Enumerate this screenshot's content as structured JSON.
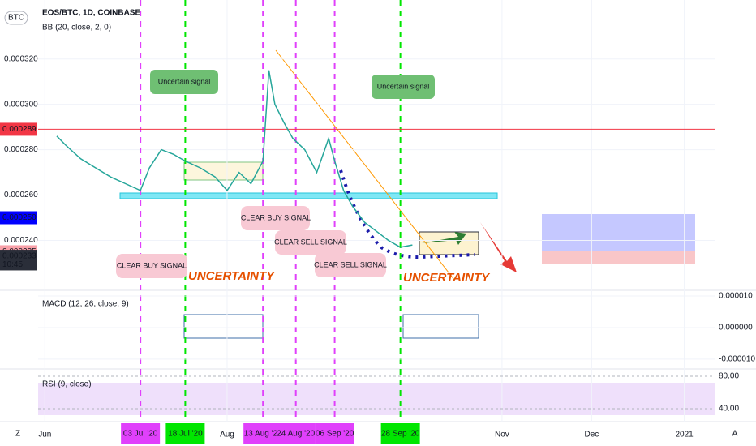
{
  "chart_data": {
    "type": "line",
    "symbol": "BTC",
    "title": "EOS/BTC, 1D, COINBASE",
    "subtitle": "BB (20, close, 2, 0)",
    "series": [
      {
        "name": "EOS/BTC",
        "color": "#26a69a",
        "x": [
          157,
          160,
          165,
          170,
          175,
          180,
          185,
          188,
          192,
          196,
          200,
          205,
          210,
          214,
          218,
          222,
          226,
          228,
          230,
          233,
          236,
          240,
          244,
          248,
          250,
          253,
          256,
          260,
          264,
          268,
          272,
          276
        ],
        "values": [
          0.000286,
          0.000282,
          0.000276,
          0.000272,
          0.000268,
          0.000265,
          0.000262,
          0.000272,
          0.00028,
          0.000278,
          0.000275,
          0.000272,
          0.000268,
          0.000262,
          0.00027,
          0.000265,
          0.000275,
          0.000315,
          0.0003,
          0.000292,
          0.000285,
          0.00028,
          0.00027,
          0.000285,
          0.000275,
          0.000262,
          0.000255,
          0.000248,
          0.000244,
          0.00024,
          0.000237,
          0.000238
        ]
      }
    ],
    "xlim": [
      138,
      391
    ],
    "ylim": [
      0.000218,
      0.000346
    ],
    "yticks": [
      {
        "value": 0.00032,
        "label": "0.000320"
      },
      {
        "value": 0.0003,
        "label": "0.000300"
      },
      {
        "value": 0.00028,
        "label": "0.000280"
      },
      {
        "value": 0.00026,
        "label": "0.000260"
      },
      {
        "value": 0.00024,
        "label": "0.000240"
      }
    ],
    "xticks": [
      {
        "value": 153,
        "label": "Jun"
      },
      {
        "value": 214,
        "label": "Aug"
      },
      {
        "value": 306,
        "label": "Nov"
      },
      {
        "value": 336,
        "label": "Dec"
      },
      {
        "value": 367,
        "label": "2021"
      }
    ],
    "marked_dates": [
      {
        "value": 185,
        "label": "03 Jul '20",
        "color": "#e040fb"
      },
      {
        "value": 200,
        "label": "18 Jul '20",
        "color": "#00e600"
      },
      {
        "value": 226,
        "label": "13 Aug '20",
        "color": "#e040fb"
      },
      {
        "value": 237,
        "label": "24 Aug '20",
        "color": "#e040fb"
      },
      {
        "value": 250,
        "label": "06 Sep '20",
        "color": "#e040fb"
      },
      {
        "value": 272,
        "label": "28 Sep '20",
        "color": "#00e600"
      }
    ],
    "price_markers": [
      {
        "value": 0.000289,
        "label": "0.000289",
        "color": "#f23645"
      },
      {
        "value": 0.00025,
        "label": "0.000250",
        "color": "#0000ff"
      },
      {
        "value": 0.000235,
        "label": "0.000235",
        "color": "#f8a0a8"
      },
      {
        "value": 0.000233,
        "label": "0.000233",
        "color": "#2a2e39"
      }
    ],
    "countdown": "10:45",
    "annotations": [
      "Uncertain signal",
      "Uncertain signal",
      "CLEAR BUY SIGNAL",
      "CLEAR BUY SIGNAL",
      "CLEAR SELL SIGNAL",
      "CLEAR SELL SIGNAL",
      "UNCERTAINTY",
      "UNCERTAINTY"
    ],
    "indicators": [
      {
        "name": "MACD (12, 26, close, 9)",
        "ylim": [
          -1.31e-05,
          1.18e-05
        ],
        "yticks": [
          {
            "value": 1e-05,
            "label": "0.000010"
          },
          {
            "value": 0,
            "label": "0.000000"
          },
          {
            "value": -1e-05,
            "label": "-0.000010"
          }
        ]
      },
      {
        "name": "RSI (9, close)",
        "ylim": [
          24,
          89
        ],
        "yticks": [
          {
            "value": 80,
            "label": "80.00"
          },
          {
            "value": 40,
            "label": "40.00"
          }
        ]
      }
    ],
    "corner_labels": [
      "Z",
      "A"
    ]
  }
}
